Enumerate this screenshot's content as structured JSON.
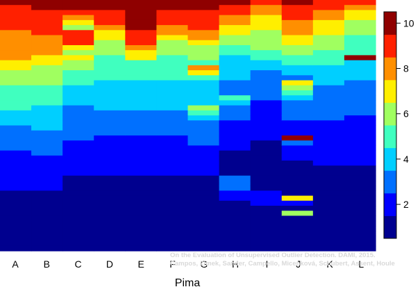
{
  "chart_data": {
    "type": "heatmap",
    "xlabel": "Pima",
    "categories": [
      "A",
      "B",
      "C",
      "D",
      "E",
      "F",
      "G",
      "H",
      "I",
      "J",
      "K",
      "L"
    ],
    "colorbar": {
      "ticks": [
        2,
        4,
        6,
        8,
        10
      ],
      "range": [
        0.5,
        10.5
      ],
      "colors": [
        "#00008f",
        "#0000ff",
        "#0070ff",
        "#00cfff",
        "#40ffbf",
        "#a0ff60",
        "#ffef00",
        "#ff8f00",
        "#ff2000",
        "#8f0000"
      ]
    },
    "columns": [
      [
        10,
        9,
        9,
        9,
        9,
        9,
        8,
        8,
        8,
        8,
        8,
        8,
        7,
        7,
        6,
        6,
        6,
        5,
        5,
        5,
        5,
        5,
        4,
        4,
        4,
        3,
        3,
        3,
        3,
        3,
        2,
        2,
        2,
        2,
        2,
        2,
        2,
        2,
        1,
        1,
        1,
        1,
        1,
        1,
        1,
        1,
        1,
        1,
        1,
        1
      ],
      [
        10,
        10,
        9,
        9,
        9,
        9,
        9,
        8,
        8,
        8,
        8,
        7,
        7,
        6,
        6,
        6,
        6,
        5,
        5,
        5,
        5,
        4,
        4,
        4,
        4,
        4,
        3,
        3,
        3,
        3,
        3,
        2,
        2,
        2,
        2,
        2,
        2,
        2,
        1,
        1,
        1,
        1,
        1,
        1,
        1,
        1,
        1,
        1,
        1,
        1
      ],
      [
        10,
        10,
        9,
        8,
        7,
        6,
        9,
        9,
        9,
        7,
        6,
        7,
        6,
        6,
        5,
        5,
        5,
        4,
        4,
        4,
        4,
        3,
        3,
        3,
        3,
        3,
        3,
        3,
        2,
        2,
        2,
        2,
        2,
        2,
        2,
        1,
        1,
        1,
        1,
        1,
        1,
        1,
        1,
        1,
        1,
        1,
        1,
        1,
        1,
        1
      ],
      [
        10,
        10,
        9,
        9,
        9,
        8,
        7,
        7,
        6,
        6,
        6,
        5,
        5,
        5,
        5,
        5,
        4,
        4,
        4,
        4,
        4,
        4,
        3,
        3,
        3,
        3,
        3,
        2,
        2,
        2,
        2,
        2,
        2,
        2,
        2,
        1,
        1,
        1,
        1,
        1,
        1,
        1,
        1,
        1,
        1,
        1,
        1,
        1,
        1,
        1
      ],
      [
        10,
        10,
        10,
        10,
        10,
        10,
        9,
        9,
        9,
        8,
        7,
        7,
        5,
        5,
        5,
        5,
        4,
        4,
        4,
        4,
        4,
        4,
        3,
        3,
        3,
        3,
        3,
        2,
        2,
        2,
        2,
        2,
        2,
        2,
        2,
        1,
        1,
        1,
        1,
        1,
        1,
        1,
        1,
        1,
        1,
        1,
        1,
        1,
        1,
        1
      ],
      [
        10,
        10,
        9,
        9,
        9,
        8,
        8,
        7,
        6,
        6,
        6,
        5,
        5,
        5,
        5,
        5,
        4,
        4,
        4,
        4,
        4,
        4,
        3,
        3,
        3,
        3,
        3,
        2,
        2,
        2,
        2,
        2,
        2,
        2,
        2,
        1,
        1,
        1,
        1,
        1,
        1,
        1,
        1,
        1,
        1,
        1,
        1,
        1,
        1,
        1
      ],
      [
        10,
        10,
        9,
        9,
        9,
        9,
        8,
        8,
        7,
        6,
        6,
        6,
        5,
        8,
        7,
        5,
        4,
        4,
        4,
        4,
        4,
        6,
        5,
        4,
        3,
        3,
        3,
        3,
        3,
        2,
        2,
        2,
        2,
        2,
        2,
        1,
        1,
        1,
        1,
        1,
        1,
        1,
        1,
        1,
        1,
        1,
        1,
        1,
        1,
        1
      ],
      [
        10,
        9,
        9,
        8,
        8,
        7,
        7,
        6,
        6,
        5,
        5,
        4,
        4,
        4,
        4,
        4,
        3,
        3,
        3,
        5,
        4,
        3,
        3,
        3,
        2,
        2,
        2,
        2,
        2,
        2,
        1,
        1,
        1,
        1,
        1,
        3,
        3,
        3,
        2,
        2,
        1,
        1,
        1,
        1,
        1,
        1,
        1,
        1,
        1,
        1
      ],
      [
        9,
        8,
        8,
        7,
        7,
        7,
        6,
        6,
        6,
        6,
        5,
        5,
        4,
        4,
        3,
        3,
        3,
        3,
        3,
        3,
        2,
        2,
        2,
        2,
        2,
        2,
        2,
        2,
        1,
        1,
        1,
        1,
        1,
        1,
        1,
        1,
        1,
        1,
        2,
        2,
        2,
        1,
        1,
        1,
        1,
        1,
        1,
        1,
        1,
        1
      ],
      [
        10,
        9,
        9,
        9,
        8,
        8,
        8,
        7,
        7,
        6,
        6,
        5,
        5,
        4,
        4,
        3,
        7,
        6,
        5,
        4,
        3,
        3,
        3,
        3,
        2,
        2,
        2,
        10,
        3,
        2,
        2,
        2,
        1,
        1,
        1,
        1,
        1,
        1,
        1,
        7,
        2,
        1,
        6,
        1,
        1,
        1,
        1,
        1,
        1,
        1
      ],
      [
        9,
        9,
        8,
        8,
        7,
        7,
        7,
        6,
        6,
        6,
        5,
        5,
        5,
        4,
        4,
        4,
        4,
        3,
        3,
        3,
        3,
        3,
        3,
        3,
        2,
        2,
        2,
        2,
        2,
        2,
        2,
        2,
        2,
        1,
        1,
        1,
        1,
        1,
        1,
        1,
        1,
        1,
        1,
        1,
        1,
        1,
        1,
        1,
        1,
        1
      ],
      [
        9,
        8,
        7,
        7,
        6,
        6,
        6,
        5,
        5,
        5,
        5,
        10,
        4,
        4,
        4,
        4,
        3,
        3,
        3,
        3,
        3,
        3,
        3,
        2,
        2,
        2,
        2,
        2,
        2,
        2,
        2,
        2,
        2,
        1,
        1,
        1,
        1,
        1,
        1,
        1,
        1,
        1,
        1,
        1,
        1,
        1,
        1,
        1,
        1,
        1
      ]
    ]
  },
  "credit": {
    "line1": "On the Evaluation of Unsupervised Outlier Detection. DAMI, 2015.",
    "line2": "Campos, Zimek, Sander, Campello, Micenková, Schubert, Assent, Houle"
  }
}
